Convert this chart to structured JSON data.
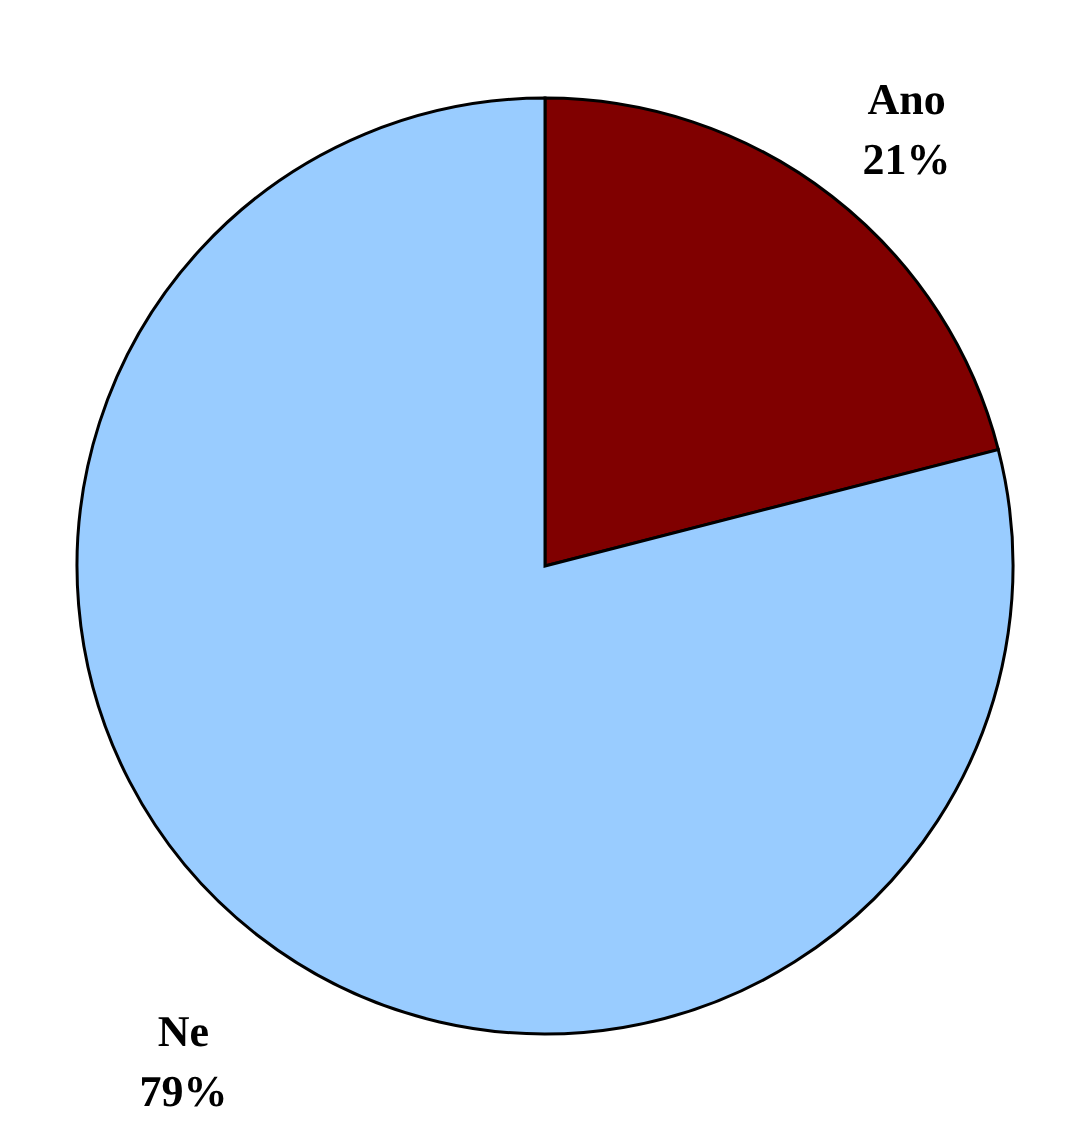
{
  "chart_data": {
    "type": "pie",
    "categories": [
      "Ano",
      "Ne"
    ],
    "values": [
      21,
      79
    ],
    "colors": [
      "#800000",
      "#99ccff"
    ],
    "value_labels": [
      "21%",
      "79%"
    ]
  }
}
